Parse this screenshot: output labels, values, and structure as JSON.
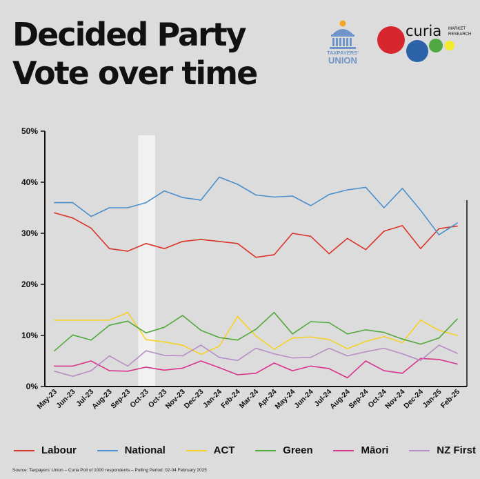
{
  "title_line1": "Decided Party",
  "title_line2": "Vote over time",
  "logos": {
    "taxpayers_union": {
      "line1": "TAXPAYERS'",
      "line2": "UNION",
      "color": "#6f95c8"
    },
    "curia": {
      "name": "curia",
      "tag_line1": "MARKET",
      "tag_line2": "RESEARCH"
    }
  },
  "source": "Source: Taxpayers' Union – Curia Poll of 1000 respondents – Polling Period: 02-04 February 2025",
  "chart_data": {
    "type": "line",
    "title": "Decided Party Vote over time",
    "xlabel": "",
    "ylabel": "",
    "categories": [
      "May-23",
      "Jun-23",
      "Jul-23",
      "Aug-23",
      "Sep-23",
      "Oct-23",
      "Oct-23",
      "Nov-23",
      "Dec-23",
      "Jan-24",
      "Feb-24",
      "Mar-24",
      "Apr-24",
      "May-24",
      "Jun-24",
      "Jul-24",
      "Aug-24",
      "Sep-24",
      "Oct-24",
      "Nov-24",
      "Dec-24",
      "Jan-25",
      "Feb-25"
    ],
    "yticks": [
      "0%",
      "10%",
      "20%",
      "30%",
      "40%",
      "50%"
    ],
    "ylim": [
      0,
      50
    ],
    "highlight_band_after_index": 5,
    "legend_position": "bottom",
    "grid": false,
    "series": [
      {
        "name": "Labour",
        "color": "#d9342b",
        "values": [
          34,
          33,
          31,
          27,
          26.5,
          28,
          27,
          28.4,
          28.8,
          28.4,
          28,
          25.3,
          25.8,
          30,
          29.4,
          26,
          29,
          26.8,
          30.4,
          31.5,
          27,
          30.9,
          31.4
        ]
      },
      {
        "name": "National",
        "color": "#4a8fcc",
        "values": [
          36,
          36,
          33.3,
          35,
          35,
          36,
          38.3,
          37,
          36.5,
          41,
          39.6,
          37.5,
          37.1,
          37.3,
          35.4,
          37.6,
          38.5,
          39,
          35,
          38.8,
          34.5,
          29.7,
          32
        ]
      },
      {
        "name": "ACT",
        "color": "#f5d226",
        "values": [
          13,
          13,
          13,
          13,
          14.5,
          9.2,
          8.7,
          8.1,
          6.3,
          7.9,
          13.7,
          9.9,
          7.3,
          9.5,
          9.7,
          9.2,
          7.4,
          8.8,
          9.8,
          8.6,
          13,
          11,
          10
        ]
      },
      {
        "name": "Green",
        "color": "#52a83c",
        "values": [
          7,
          10.1,
          9.1,
          12,
          12.8,
          10.5,
          11.6,
          13.9,
          11,
          9.6,
          9.1,
          11.2,
          14.5,
          10.3,
          12.7,
          12.5,
          10.3,
          11.1,
          10.6,
          9.3,
          8.3,
          9.5,
          13.2
        ]
      },
      {
        "name": "Māori",
        "color": "#d9348a",
        "values": [
          4,
          4,
          5,
          3.1,
          3,
          3.8,
          3.2,
          3.6,
          5,
          3.7,
          2.3,
          2.6,
          4.6,
          3.1,
          4,
          3.5,
          1.7,
          5,
          3.1,
          2.6,
          5.5,
          5.3,
          4.4
        ]
      },
      {
        "name": "NZ First",
        "color": "#b58ec4",
        "values": [
          3,
          2,
          3.1,
          6,
          4,
          7,
          6.1,
          6,
          8.1,
          5.7,
          5.1,
          7.5,
          6.4,
          5.6,
          5.7,
          7.5,
          6,
          6.8,
          7.5,
          6.4,
          5.1,
          8.1,
          6.5
        ]
      }
    ]
  }
}
